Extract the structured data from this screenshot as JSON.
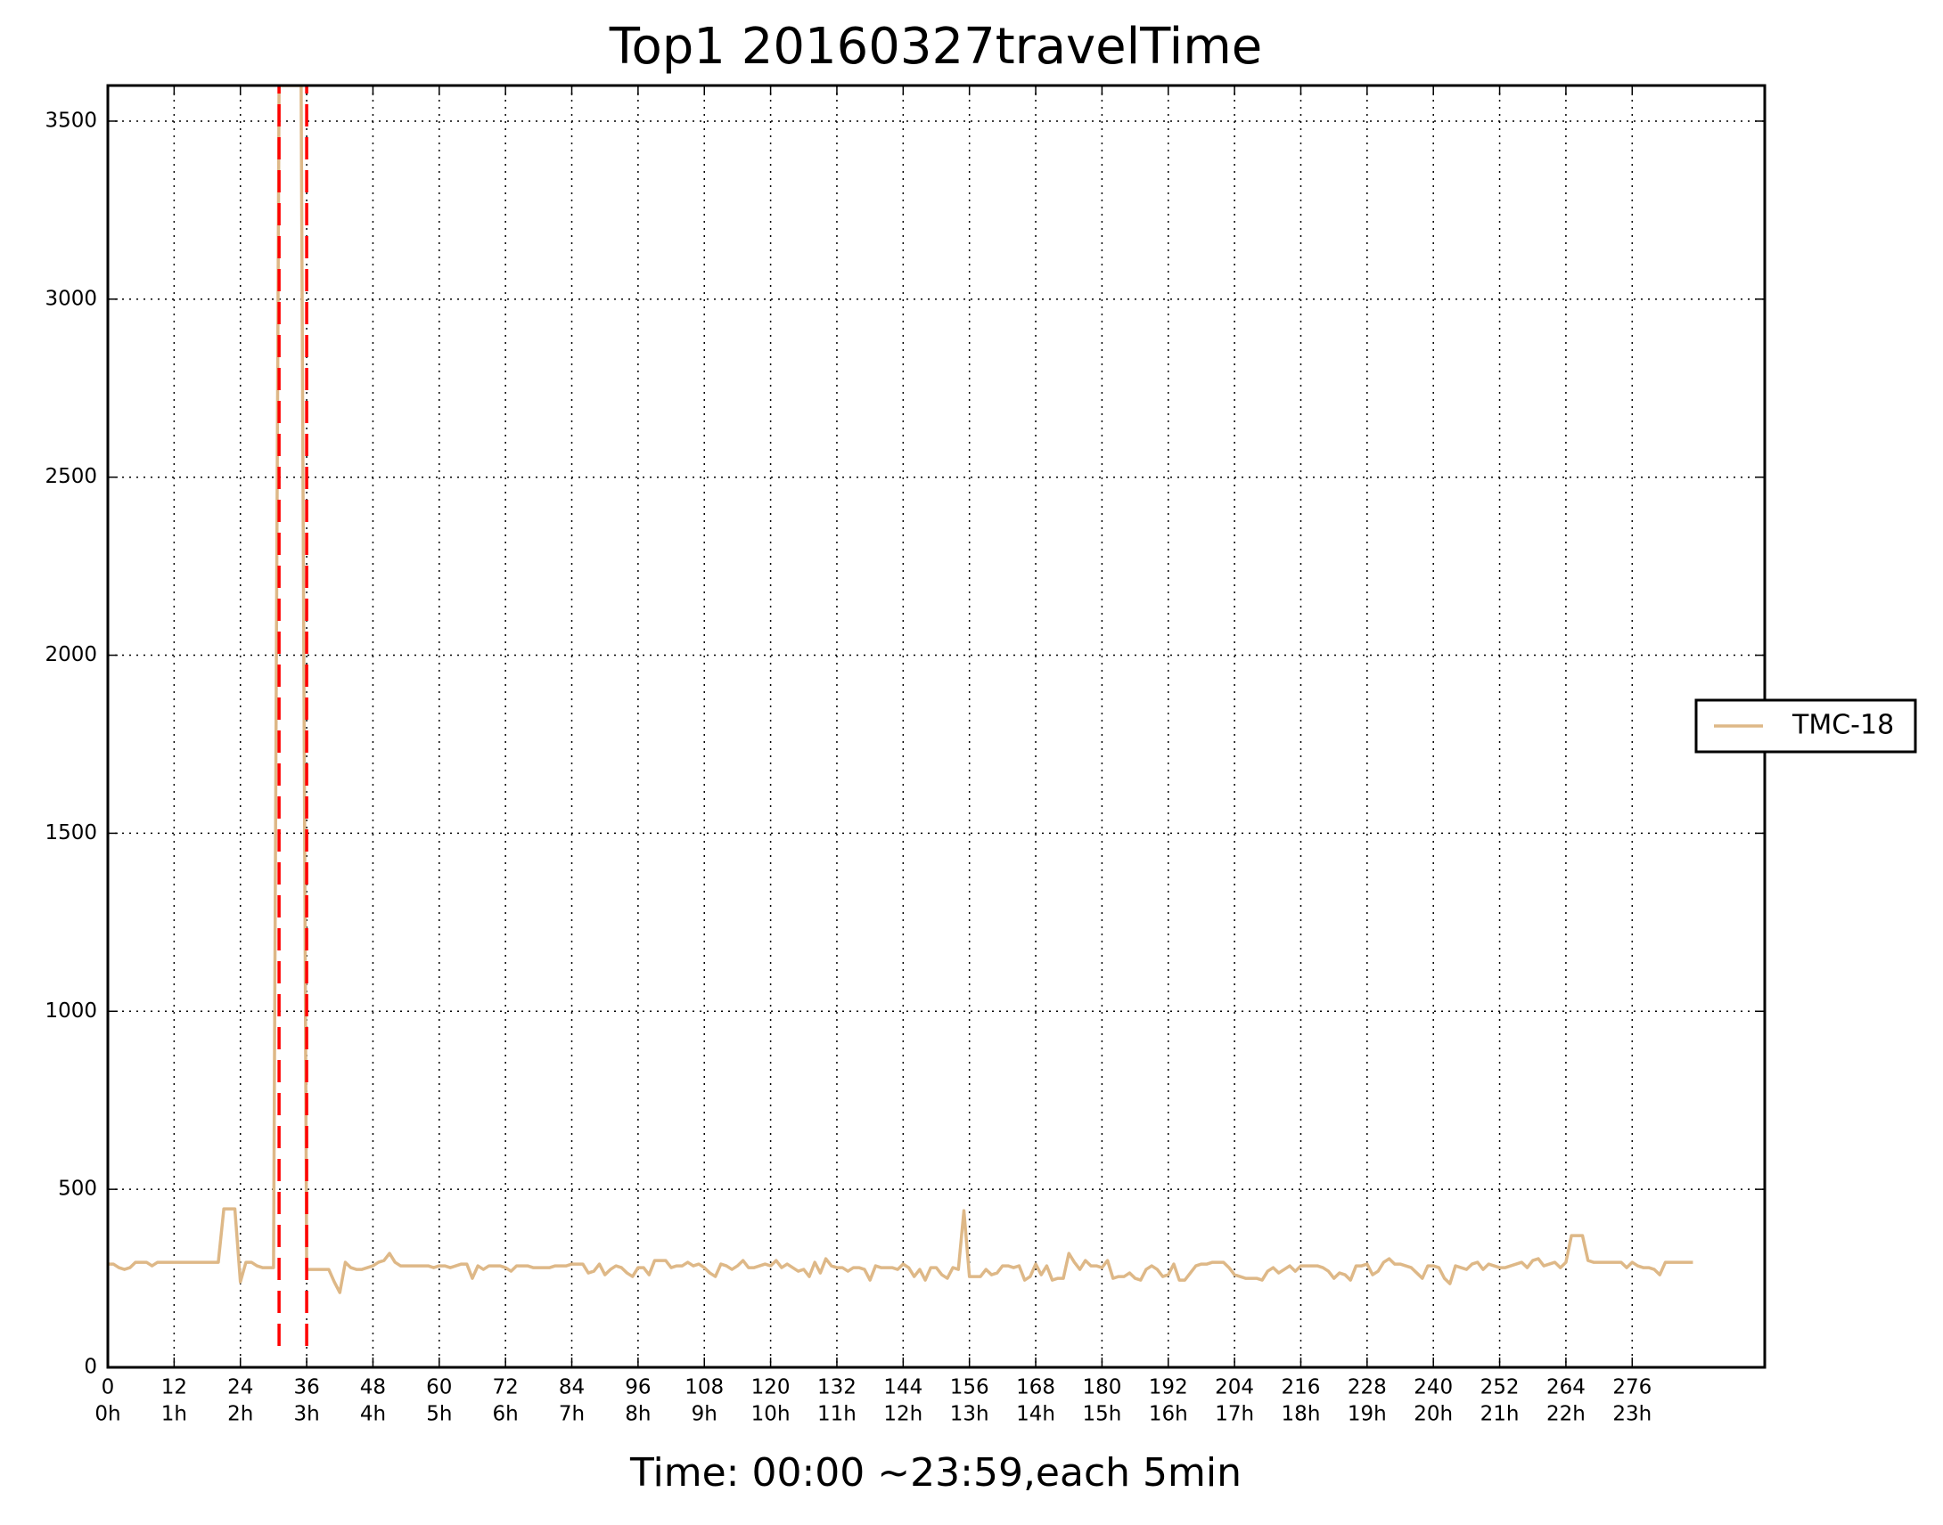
{
  "chart_data": {
    "type": "line",
    "title": "Top1 20160327travelTime",
    "x_label": "Time: 00:00 ~23:59,each 5min",
    "xlim": [
      0,
      300
    ],
    "ylim": [
      0,
      3600
    ],
    "xticks": [
      {
        "value": 0,
        "label": [
          "0",
          "0h"
        ]
      },
      {
        "value": 12,
        "label": [
          "12",
          "1h"
        ]
      },
      {
        "value": 24,
        "label": [
          "24",
          "2h"
        ]
      },
      {
        "value": 36,
        "label": [
          "36",
          "3h"
        ]
      },
      {
        "value": 48,
        "label": [
          "48",
          "4h"
        ]
      },
      {
        "value": 60,
        "label": [
          "60",
          "5h"
        ]
      },
      {
        "value": 72,
        "label": [
          "72",
          "6h"
        ]
      },
      {
        "value": 84,
        "label": [
          "84",
          "7h"
        ]
      },
      {
        "value": 96,
        "label": [
          "96",
          "8h"
        ]
      },
      {
        "value": 108,
        "label": [
          "108",
          "9h"
        ]
      },
      {
        "value": 120,
        "label": [
          "120",
          "10h"
        ]
      },
      {
        "value": 132,
        "label": [
          "132",
          "11h"
        ]
      },
      {
        "value": 144,
        "label": [
          "144",
          "12h"
        ]
      },
      {
        "value": 156,
        "label": [
          "156",
          "13h"
        ]
      },
      {
        "value": 168,
        "label": [
          "168",
          "14h"
        ]
      },
      {
        "value": 180,
        "label": [
          "180",
          "15h"
        ]
      },
      {
        "value": 192,
        "label": [
          "192",
          "16h"
        ]
      },
      {
        "value": 204,
        "label": [
          "204",
          "17h"
        ]
      },
      {
        "value": 216,
        "label": [
          "216",
          "18h"
        ]
      },
      {
        "value": 228,
        "label": [
          "228",
          "19h"
        ]
      },
      {
        "value": 240,
        "label": [
          "240",
          "20h"
        ]
      },
      {
        "value": 252,
        "label": [
          "252",
          "21h"
        ]
      },
      {
        "value": 264,
        "label": [
          "264",
          "22h"
        ]
      },
      {
        "value": 276,
        "label": [
          "276",
          "23h"
        ]
      }
    ],
    "yticks": [
      0,
      500,
      1000,
      1500,
      2000,
      2500,
      3000,
      3500
    ],
    "grid": true,
    "legend": "right",
    "vlines": [
      {
        "x": 31,
        "ymin": 60,
        "color": "#ff0000"
      },
      {
        "x": 36,
        "ymin": 60,
        "color": "#ff0000"
      }
    ],
    "x": [
      0,
      1,
      2,
      3,
      4,
      5,
      6,
      7,
      8,
      9,
      10,
      11,
      12,
      13,
      14,
      15,
      16,
      17,
      18,
      19,
      20,
      21,
      22,
      23,
      24,
      25,
      26,
      27,
      28,
      29,
      30,
      31,
      32,
      33,
      34,
      35,
      36,
      37,
      38,
      39,
      40,
      41,
      42,
      43,
      44,
      45,
      46,
      47,
      48,
      49,
      50,
      51,
      52,
      53,
      54,
      55,
      56,
      57,
      58,
      59,
      60,
      61,
      62,
      63,
      64,
      65,
      66,
      67,
      68,
      69,
      70,
      71,
      72,
      73,
      74,
      75,
      76,
      77,
      78,
      79,
      80,
      81,
      82,
      83,
      84,
      85,
      86,
      87,
      88,
      89,
      90,
      91,
      92,
      93,
      94,
      95,
      96,
      97,
      98,
      99,
      100,
      101,
      102,
      103,
      104,
      105,
      106,
      107,
      108,
      109,
      110,
      111,
      112,
      113,
      114,
      115,
      116,
      117,
      118,
      119,
      120,
      121,
      122,
      123,
      124,
      125,
      126,
      127,
      128,
      129,
      130,
      131,
      132,
      133,
      134,
      135,
      136,
      137,
      138,
      139,
      140,
      141,
      142,
      143,
      144,
      145,
      146,
      147,
      148,
      149,
      150,
      151,
      152,
      153,
      154,
      155,
      156,
      157,
      158,
      159,
      160,
      161,
      162,
      163,
      164,
      165,
      166,
      167,
      168,
      169,
      170,
      171,
      172,
      173,
      174,
      175,
      176,
      177,
      178,
      179,
      180,
      181,
      182,
      183,
      184,
      185,
      186,
      187,
      188,
      189,
      190,
      191,
      192,
      193,
      194,
      195,
      196,
      197,
      198,
      199,
      200,
      201,
      202,
      203,
      204,
      205,
      206,
      207,
      208,
      209,
      210,
      211,
      212,
      213,
      214,
      215,
      216,
      217,
      218,
      219,
      220,
      221,
      222,
      223,
      224,
      225,
      226,
      227,
      228,
      229,
      230,
      231,
      232,
      233,
      234,
      235,
      236,
      237,
      238,
      239,
      240,
      241,
      242,
      243,
      244,
      245,
      246,
      247,
      248,
      249,
      250,
      251,
      252,
      253,
      254,
      255,
      256,
      257,
      258,
      259,
      260,
      261,
      262,
      263,
      264,
      265,
      266,
      267,
      268,
      269,
      270,
      271,
      272,
      273,
      274,
      275,
      276,
      277,
      278,
      279,
      280,
      281,
      282,
      283,
      284,
      285,
      286,
      287
    ],
    "series": [
      {
        "name": "TMC-18",
        "color": "#deb887",
        "values": [
          290,
          290,
          280,
          275,
          280,
          295,
          295,
          295,
          285,
          295,
          295,
          295,
          295,
          295,
          295,
          295,
          295,
          295,
          295,
          295,
          295,
          445,
          445,
          445,
          240,
          295,
          295,
          285,
          280,
          280,
          280,
          3600,
          3600,
          3600,
          3600,
          3600,
          275,
          275,
          275,
          275,
          275,
          240,
          210,
          295,
          280,
          275,
          275,
          280,
          285,
          295,
          300,
          320,
          295,
          285,
          285,
          285,
          285,
          285,
          285,
          280,
          285,
          285,
          280,
          285,
          290,
          290,
          250,
          285,
          275,
          285,
          285,
          285,
          280,
          270,
          285,
          285,
          285,
          280,
          280,
          280,
          280,
          285,
          285,
          285,
          290,
          290,
          290,
          265,
          270,
          290,
          260,
          275,
          285,
          280,
          265,
          255,
          280,
          280,
          260,
          300,
          300,
          300,
          280,
          285,
          285,
          295,
          285,
          290,
          280,
          265,
          255,
          290,
          285,
          275,
          285,
          300,
          280,
          280,
          285,
          290,
          285,
          300,
          280,
          290,
          280,
          270,
          275,
          255,
          295,
          265,
          305,
          285,
          280,
          280,
          270,
          280,
          280,
          275,
          245,
          285,
          280,
          280,
          280,
          275,
          290,
          280,
          255,
          275,
          245,
          280,
          280,
          260,
          250,
          280,
          275,
          440,
          255,
          255,
          255,
          275,
          260,
          265,
          285,
          285,
          280,
          285,
          245,
          255,
          290,
          260,
          285,
          245,
          250,
          250,
          320,
          295,
          275,
          300,
          285,
          285,
          280,
          300,
          250,
          255,
          255,
          265,
          250,
          245,
          275,
          285,
          275,
          255,
          260,
          290,
          245,
          245,
          265,
          285,
          290,
          290,
          295,
          295,
          295,
          280,
          260,
          255,
          250,
          250,
          250,
          245,
          270,
          280,
          265,
          275,
          285,
          270,
          285,
          285,
          285,
          285,
          280,
          270,
          250,
          265,
          260,
          245,
          285,
          285,
          290,
          260,
          270,
          295,
          305,
          290,
          290,
          285,
          280,
          265,
          250,
          285,
          285,
          280,
          250,
          235,
          285,
          280,
          275,
          290,
          295,
          275,
          290,
          285,
          280,
          280,
          285,
          290,
          295,
          280,
          300,
          305,
          285,
          290,
          295,
          280,
          295,
          370,
          370,
          370,
          300,
          295,
          295,
          295,
          295,
          295,
          295,
          280,
          295,
          285,
          280,
          280,
          275,
          260,
          295,
          295,
          295,
          295,
          295,
          295
        ]
      }
    ]
  }
}
